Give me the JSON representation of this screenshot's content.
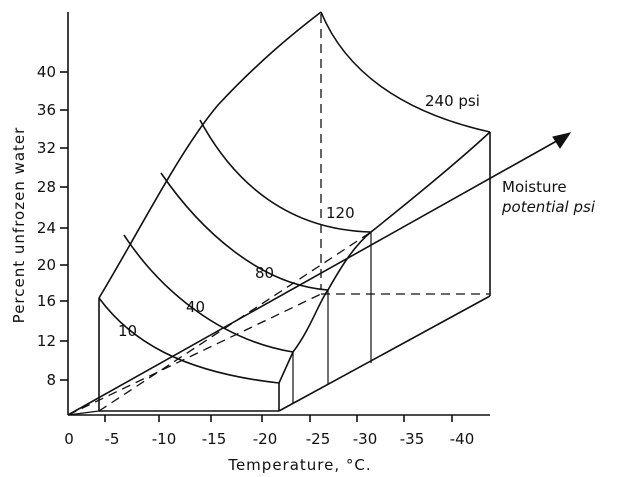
{
  "y_axis": {
    "title": "Percent unfrozen water",
    "ticks": [
      "8",
      "12",
      "16",
      "20",
      "24",
      "28",
      "32",
      "36",
      "40"
    ]
  },
  "x_axis": {
    "title": "Temperature, °C.",
    "ticks": [
      "0",
      "-5",
      "-10",
      "-15",
      "-20",
      "-25",
      "-30",
      "-35",
      "-40"
    ]
  },
  "depth_axis": {
    "title_line1": "Moisture",
    "title_line2": "potential psi"
  },
  "curves": [
    {
      "label": "10"
    },
    {
      "label": "40"
    },
    {
      "label": "80"
    },
    {
      "label": "120"
    },
    {
      "label": "240 psi"
    }
  ]
}
